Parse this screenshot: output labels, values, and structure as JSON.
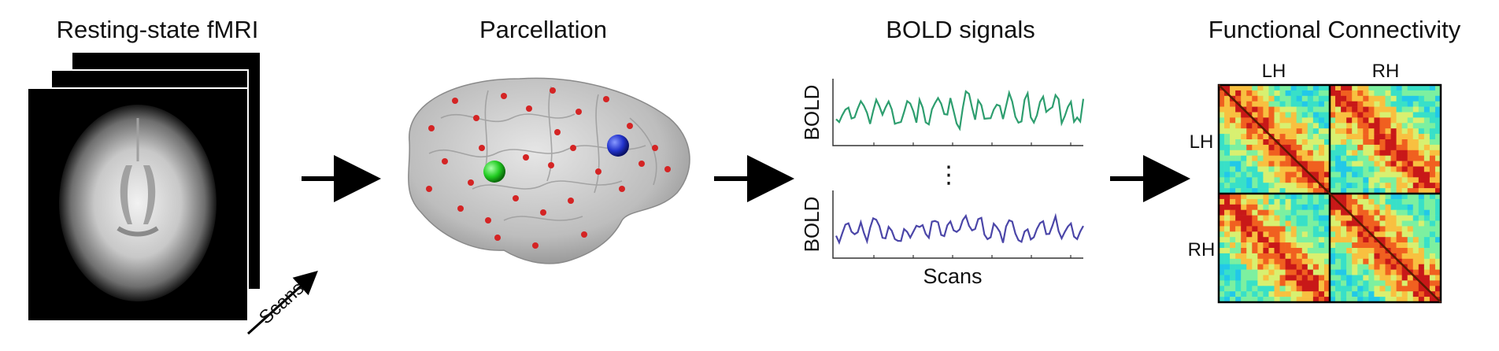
{
  "stages": {
    "fmri": {
      "title": "Resting-state fMRI",
      "scans_label": "Scans"
    },
    "parcellation": {
      "title": "Parcellation"
    },
    "bold": {
      "title": "BOLD signals",
      "ylabel": "BOLD",
      "xlabel": "Scans",
      "ellipsis": "⋮"
    },
    "fc": {
      "title": "Functional Connectivity",
      "col_labels": [
        "LH",
        "RH"
      ],
      "row_labels": [
        "LH",
        "RH"
      ]
    }
  },
  "colors": {
    "bold_signal_top": "#2e9e6f",
    "bold_signal_bottom": "#4b46a8",
    "roi_green": "#22cc22",
    "roi_blue": "#2233cc",
    "roi_points": "#cc2222",
    "arrow": "#000000"
  }
}
